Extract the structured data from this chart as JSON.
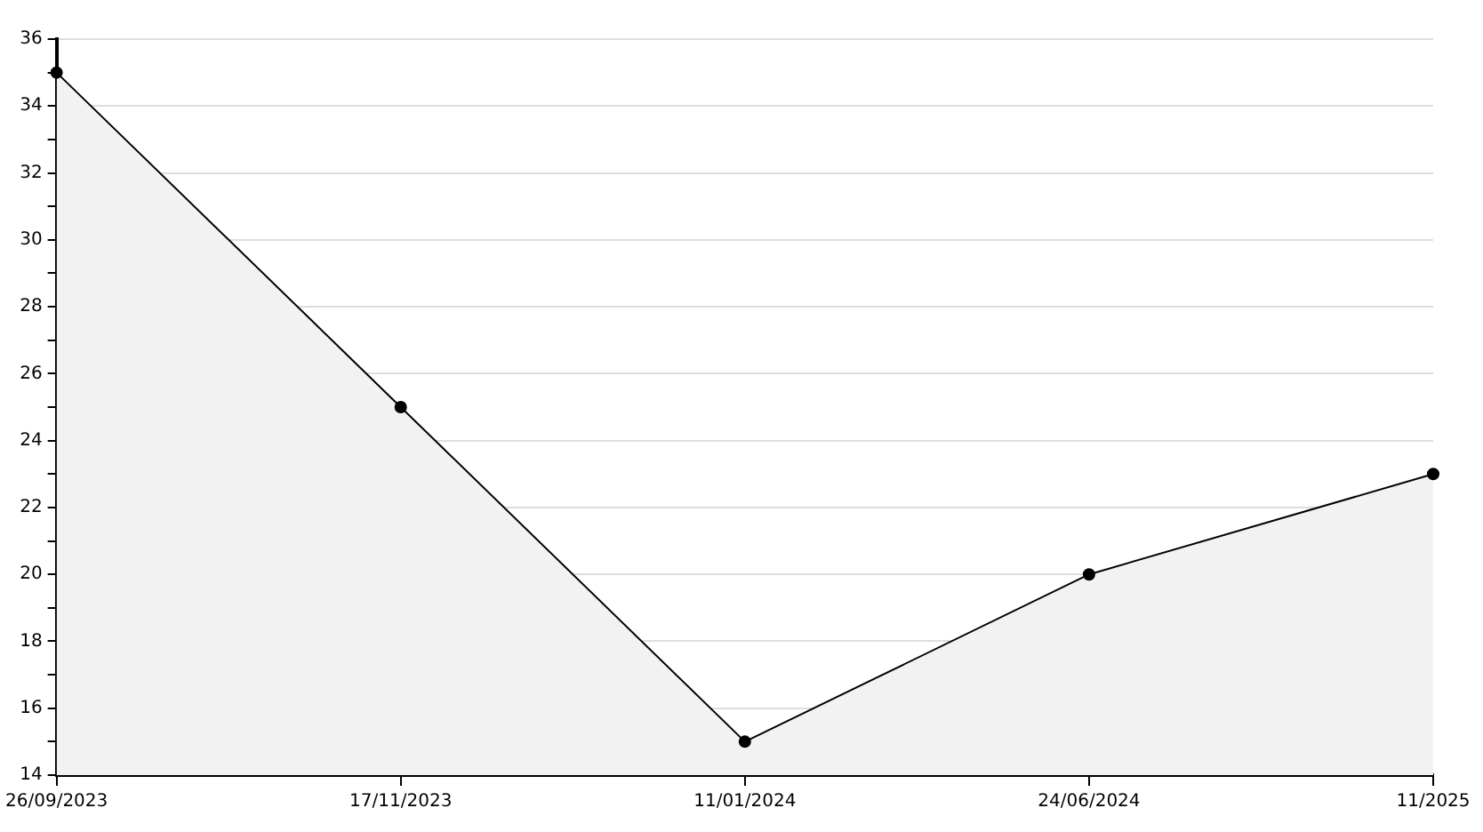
{
  "chart_data": {
    "type": "area",
    "categories": [
      "26/09/2023",
      "17/11/2023",
      "11/01/2024",
      "24/06/2024",
      "11/2025"
    ],
    "series": [
      {
        "color": "#000000",
        "values": [
          35,
          25,
          15,
          20,
          23
        ]
      }
    ],
    "ylim": [
      14,
      36
    ],
    "yticks": [
      14,
      {
        "value": 15,
        "label": null
      },
      16,
      {
        "value": 17,
        "label": null
      },
      18,
      {
        "value": 19,
        "label": null
      },
      20,
      {
        "value": 21,
        "label": null
      },
      22,
      {
        "value": 23,
        "label": null
      },
      24,
      {
        "value": 25,
        "label": null
      },
      26,
      {
        "value": 27,
        "label": null
      },
      28,
      {
        "value": 29,
        "label": null
      },
      30,
      {
        "value": 31,
        "label": null
      },
      32,
      {
        "value": 33,
        "label": null
      },
      34,
      {
        "value": 35,
        "label": null
      },
      36
    ],
    "grid": "y",
    "legend": false,
    "marker": "circle",
    "line_style": "solid"
  }
}
